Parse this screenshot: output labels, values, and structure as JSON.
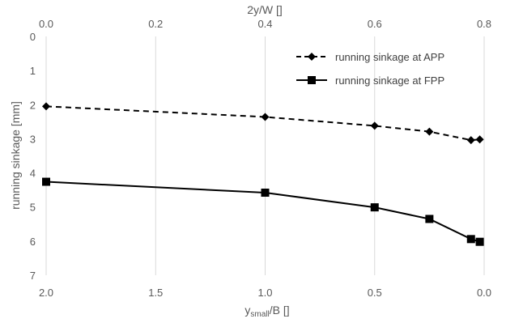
{
  "chart_data": {
    "type": "line",
    "y_axis": {
      "label": "running sinkage [mm]",
      "range": [
        0,
        7
      ],
      "ticks": [
        "0",
        "1",
        "2",
        "3",
        "4",
        "5",
        "6",
        "7"
      ],
      "inverted": true
    },
    "x_bottom": {
      "label_main": "y",
      "label_sub": "small",
      "label_rest": "/B []",
      "range": [
        2.0,
        0.0
      ],
      "ticks": [
        "2.0",
        "1.5",
        "1.0",
        "0.5",
        "0.0"
      ]
    },
    "x_top": {
      "label": "2y/W []",
      "range": [
        0.0,
        0.8
      ],
      "ticks": [
        "0.0",
        "0.2",
        "0.4",
        "0.6",
        "0.8"
      ]
    },
    "grid": "vertical",
    "legend_position": "top-right",
    "x": [
      2.0,
      1.0,
      0.5,
      0.25,
      0.06,
      0.02
    ],
    "series": [
      {
        "name": "running sinkage at APP",
        "values": [
          2.05,
          2.36,
          2.62,
          2.79,
          3.04,
          3.02
        ],
        "marker": "diamond",
        "line": "dashed",
        "color": "#000000"
      },
      {
        "name": "running sinkage at FPP",
        "values": [
          4.26,
          4.58,
          5.01,
          5.35,
          5.94,
          6.02
        ],
        "marker": "square",
        "line": "solid",
        "color": "#000000"
      }
    ]
  }
}
